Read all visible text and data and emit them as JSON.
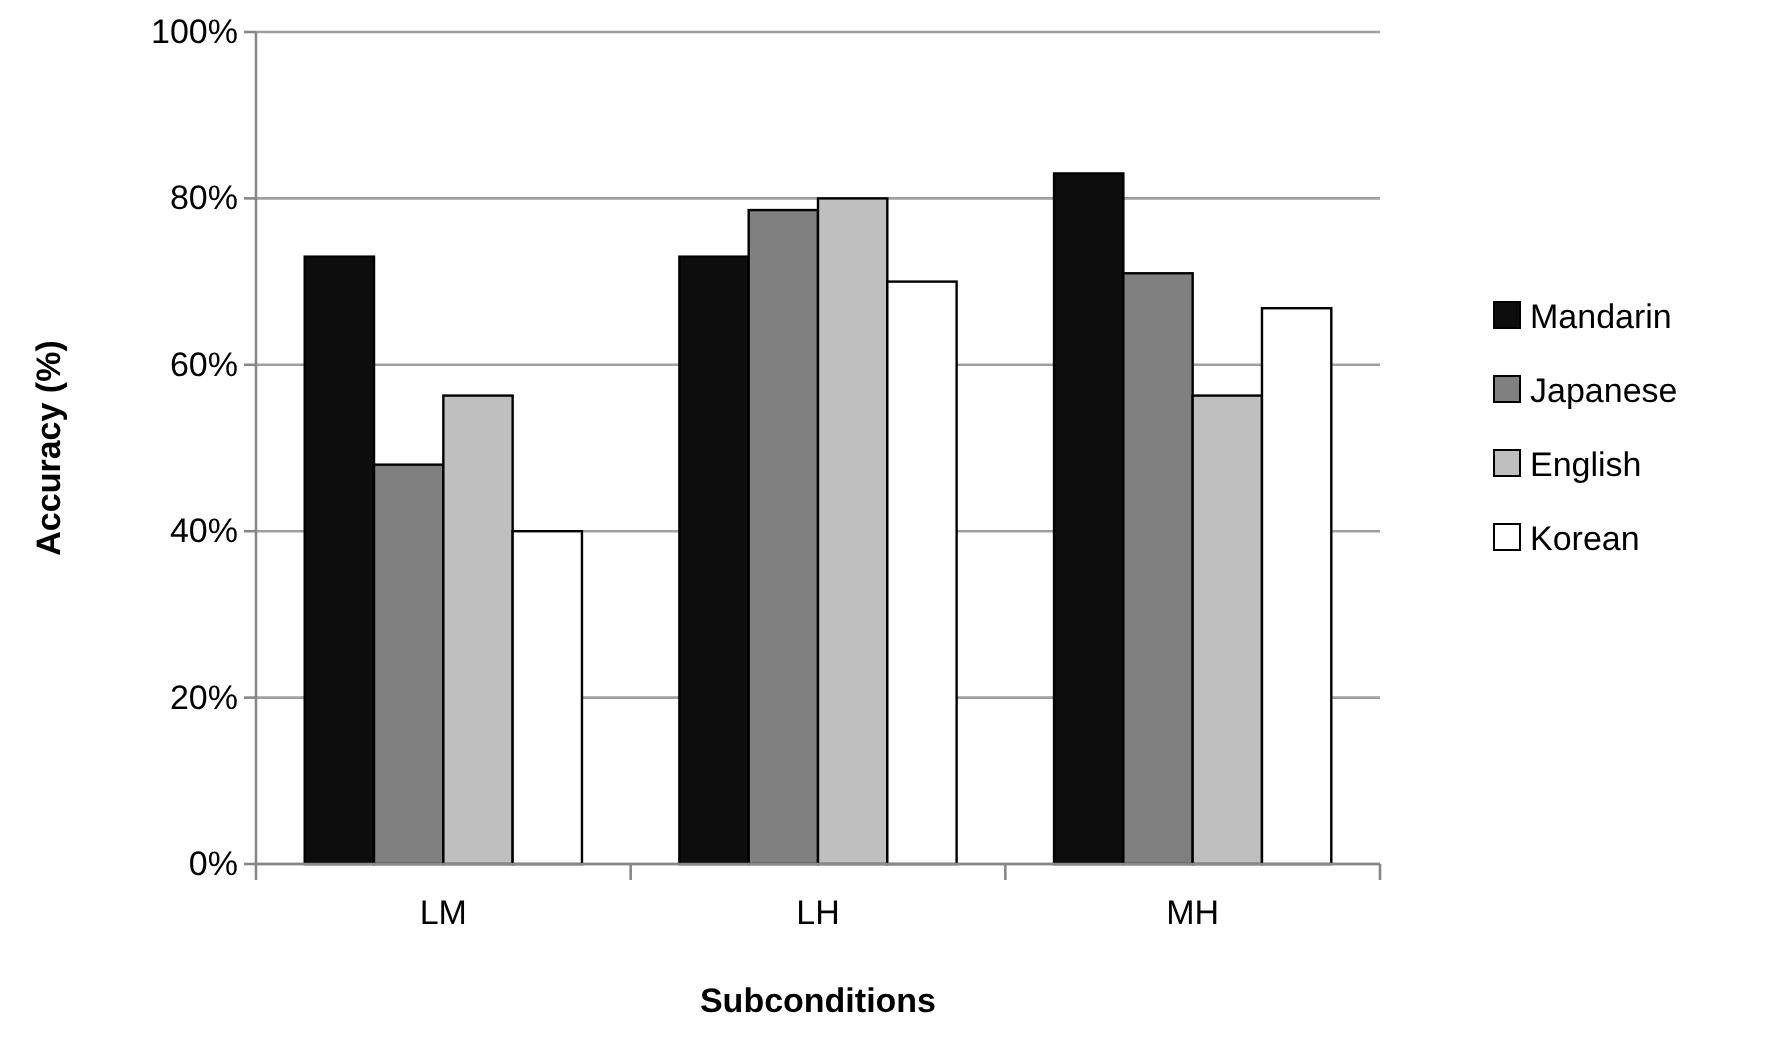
{
  "chart_data": {
    "type": "bar",
    "xlabel": "Subconditions",
    "ylabel": "Accuracy (%)",
    "categories": [
      "LM",
      "LH",
      "MH"
    ],
    "series": [
      {
        "name": "Mandarin",
        "color": "#0d0d0d",
        "values": [
          73,
          73,
          83
        ]
      },
      {
        "name": "Japanese",
        "color": "#808080",
        "values": [
          48,
          78.6,
          71
        ]
      },
      {
        "name": "English",
        "color": "#bfbfbf",
        "values": [
          56.3,
          80,
          56.3
        ]
      },
      {
        "name": "Korean",
        "color": "#ffffff",
        "values": [
          40,
          70,
          66.8
        ]
      }
    ],
    "ylim": [
      0,
      100
    ],
    "yticks": [
      {
        "value": 0,
        "label": "0%"
      },
      {
        "value": 20,
        "label": "20%"
      },
      {
        "value": 40,
        "label": "40%"
      },
      {
        "value": 60,
        "label": "60%"
      },
      {
        "value": 80,
        "label": "80%"
      },
      {
        "value": 100,
        "label": "100%"
      }
    ],
    "grid": "y",
    "legend": "right"
  }
}
